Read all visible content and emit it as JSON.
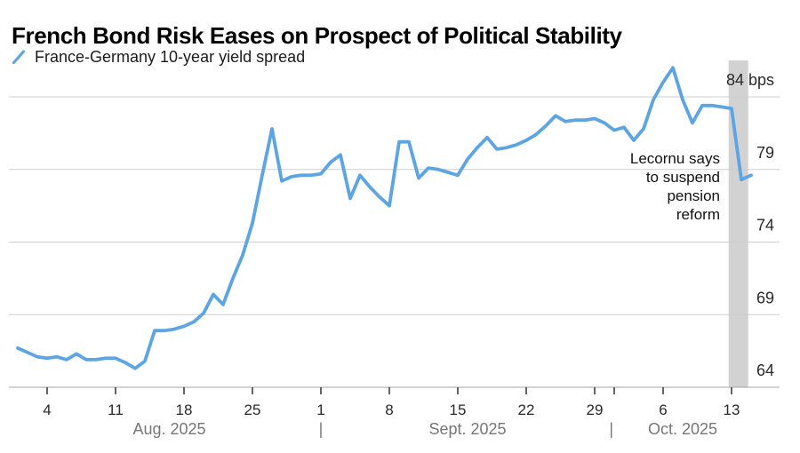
{
  "header": {
    "title": "French Bond Risk Eases on Prospect of Political Stability",
    "legend": {
      "label": "France-Germany 10-year yield spread",
      "color": "#5CA5E2"
    }
  },
  "chart_data": {
    "type": "line",
    "title": "French Bond Risk Eases on Prospect of Political Stability",
    "unit": "bps",
    "x_unit": "days from Aug 1, 2025",
    "series": [
      {
        "name": "France-Germany 10-year yield spread",
        "color": "#5CA5E2",
        "points": [
          [
            0,
            66.7
          ],
          [
            1,
            66.4
          ],
          [
            2,
            66.1
          ],
          [
            3,
            66.0
          ],
          [
            4,
            66.1
          ],
          [
            5,
            65.9
          ],
          [
            6,
            66.3
          ],
          [
            7,
            65.9
          ],
          [
            8,
            65.9
          ],
          [
            9,
            66.0
          ],
          [
            10,
            66.0
          ],
          [
            11,
            65.7
          ],
          [
            12,
            65.3
          ],
          [
            13,
            65.8
          ],
          [
            14,
            67.9
          ],
          [
            15,
            67.9
          ],
          [
            16,
            68.0
          ],
          [
            17,
            68.2
          ],
          [
            18,
            68.5
          ],
          [
            19,
            69.1
          ],
          [
            20,
            70.4
          ],
          [
            21,
            69.7
          ],
          [
            22,
            71.5
          ],
          [
            23,
            73.1
          ],
          [
            24,
            75.3
          ],
          [
            25,
            78.6
          ],
          [
            26,
            81.8
          ],
          [
            27,
            78.2
          ],
          [
            28,
            78.5
          ],
          [
            29,
            78.6
          ],
          [
            30,
            78.6
          ],
          [
            31,
            78.7
          ],
          [
            32,
            79.5
          ],
          [
            33,
            80.0
          ],
          [
            34,
            77.0
          ],
          [
            35,
            78.6
          ],
          [
            36,
            77.8
          ],
          [
            37,
            77.1
          ],
          [
            38,
            76.5
          ],
          [
            39,
            80.9
          ],
          [
            40,
            80.9
          ],
          [
            41,
            78.4
          ],
          [
            42,
            79.1
          ],
          [
            43,
            79.0
          ],
          [
            44,
            78.8
          ],
          [
            45,
            78.6
          ],
          [
            46,
            79.7
          ],
          [
            47,
            80.5
          ],
          [
            48,
            81.2
          ],
          [
            49,
            80.4
          ],
          [
            50,
            80.5
          ],
          [
            51,
            80.7
          ],
          [
            52,
            81.0
          ],
          [
            53,
            81.4
          ],
          [
            54,
            82.0
          ],
          [
            55,
            82.7
          ],
          [
            56,
            82.3
          ],
          [
            57,
            82.4
          ],
          [
            58,
            82.4
          ],
          [
            59,
            82.5
          ],
          [
            60,
            82.2
          ],
          [
            61,
            81.7
          ],
          [
            62,
            81.9
          ],
          [
            63,
            81.0
          ],
          [
            64,
            81.8
          ],
          [
            65,
            83.8
          ],
          [
            66,
            85.0
          ],
          [
            67,
            86.0
          ],
          [
            68,
            83.8
          ],
          [
            69,
            82.2
          ],
          [
            70,
            83.4
          ],
          [
            71,
            83.4
          ],
          [
            72,
            83.3
          ],
          [
            73,
            83.2
          ],
          [
            74,
            78.3
          ],
          [
            75,
            78.6
          ]
        ]
      }
    ],
    "y_axis": {
      "min": 64,
      "max": 86.5,
      "labels": [
        {
          "text": "84 bps",
          "value": 84
        },
        {
          "text": "79",
          "value": 79
        },
        {
          "text": "74",
          "value": 74
        },
        {
          "text": "69",
          "value": 69
        },
        {
          "text": "64",
          "value": 64
        }
      ]
    },
    "x_axis": {
      "ticks": [
        {
          "label": "4",
          "day": 3
        },
        {
          "label": "11",
          "day": 10
        },
        {
          "label": "18",
          "day": 17
        },
        {
          "label": "25",
          "day": 24
        },
        {
          "label": "1",
          "day": 31
        },
        {
          "label": "8",
          "day": 38
        },
        {
          "label": "15",
          "day": 45
        },
        {
          "label": "22",
          "day": 52
        },
        {
          "label": "29",
          "day": 59
        },
        {
          "label": "",
          "day": 61
        },
        {
          "label": "6",
          "day": 66
        },
        {
          "label": "13",
          "day": 73
        }
      ],
      "months": [
        {
          "label": "Aug. 2025",
          "center_day": 15.5
        },
        {
          "label": "Sept. 2025",
          "center_day": 46
        },
        {
          "label": "Oct. 2025",
          "center_day": 68
        }
      ],
      "separators": [
        {
          "day": 31
        },
        {
          "day": 60.7
        }
      ]
    },
    "highlight_band": {
      "from_day": 72.7,
      "to_day": 74.7,
      "from_date": "Oct 13",
      "to_date": "Oct 15",
      "color": "#D2D2D2"
    },
    "annotation": {
      "lines": [
        "Lecornu says",
        "to suspend",
        "pension",
        "reform"
      ]
    },
    "grid": "horizontal",
    "legend_position": "top-left"
  }
}
